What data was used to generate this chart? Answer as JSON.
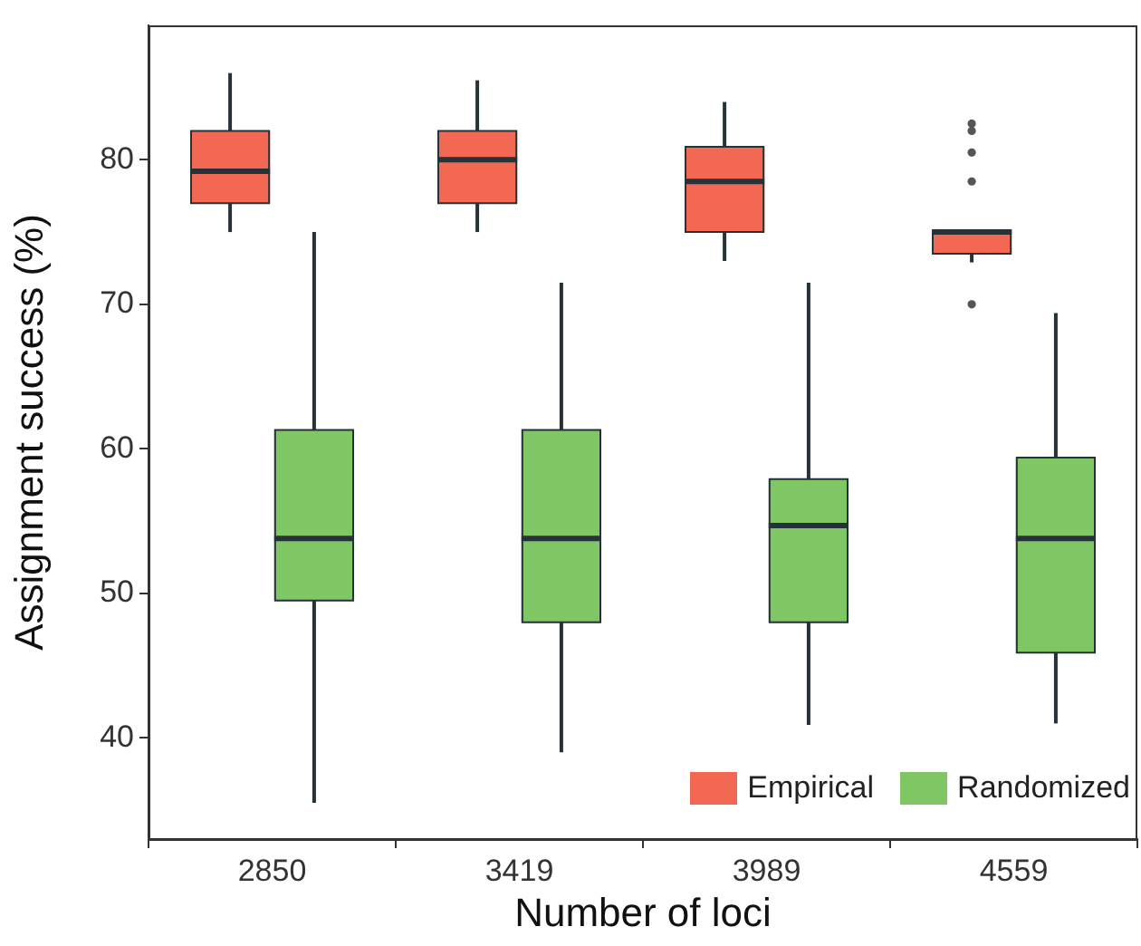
{
  "chart_data": {
    "type": "box",
    "xlabel": "Number of loci",
    "ylabel": "Assignment success (%)",
    "categories": [
      "2850",
      "3419",
      "3989",
      "4559"
    ],
    "ylim": [
      33,
      89.3
    ],
    "yticks": [
      40,
      50,
      60,
      70,
      80
    ],
    "grid": false,
    "legend": "bottom right",
    "series": [
      {
        "name": "Empirical",
        "color": "#f26852",
        "boxes": [
          {
            "low": 75,
            "q1": 77,
            "median": 79.2,
            "q3": 82,
            "high": 86
          },
          {
            "low": 75,
            "q1": 77,
            "median": 80,
            "q3": 82,
            "high": 85.5
          },
          {
            "low": 73,
            "q1": 75,
            "median": 78.5,
            "q3": 80.9,
            "high": 84
          },
          {
            "low": 72.9,
            "q1": 73.5,
            "median": 75,
            "q3": 75.1,
            "high": 75.1,
            "outliers": [
              82.5,
              82,
              80.5,
              78.5,
              70
            ]
          }
        ]
      },
      {
        "name": "Randomized",
        "color": "#7fc664",
        "boxes": [
          {
            "low": 35.5,
            "q1": 49.5,
            "median": 53.8,
            "q3": 61.3,
            "high": 75
          },
          {
            "low": 39,
            "q1": 48,
            "median": 53.8,
            "q3": 61.3,
            "high": 71.5
          },
          {
            "low": 40.9,
            "q1": 48,
            "median": 54.7,
            "q3": 57.9,
            "high": 71.5
          },
          {
            "low": 41,
            "q1": 45.9,
            "median": 53.8,
            "q3": 59.4,
            "high": 69.4
          }
        ]
      }
    ]
  }
}
